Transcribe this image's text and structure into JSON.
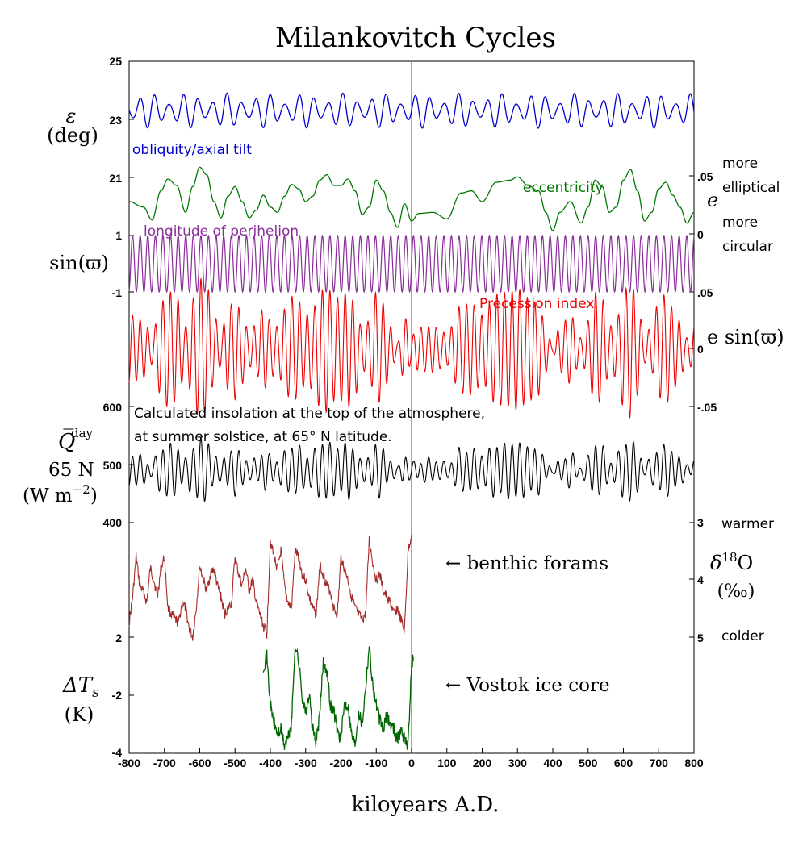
{
  "chart_data": {
    "type": "line",
    "title": "Milankovitch Cycles",
    "xlabel": "kiloyears A.D.",
    "xlim": [
      -800,
      800
    ],
    "x_ticks": [
      -800,
      -700,
      -600,
      -500,
      -400,
      -300,
      -200,
      -100,
      0,
      100,
      200,
      300,
      400,
      500,
      600,
      700,
      800
    ],
    "colors": {
      "obliquity": "#0000cc",
      "eccentricity": "#007700",
      "perihelion": "#8a2c9a",
      "precession": "#ee0000",
      "insolation": "#000000",
      "forams": "#a52a2a",
      "vostok": "#006400",
      "zero_line": "#888888"
    },
    "left_tick_labels": {
      "obliquity": [
        "25",
        "23",
        "21"
      ],
      "perihelion": [
        "1",
        "-1"
      ],
      "insolation": [
        "600",
        "500",
        "400"
      ],
      "temperature": [
        "2",
        "-2",
        "-4"
      ]
    },
    "right_tick_labels": {
      "eccentricity": [
        ".05",
        "0"
      ],
      "precession": [
        ".05",
        "0",
        "-.05"
      ],
      "d18O": [
        "3",
        "4",
        "5"
      ]
    },
    "panels": {
      "obliquity": {
        "ylabel_symbol": "ε",
        "ylabel_unit": "(deg)",
        "annotation": "obliquity/axial tilt",
        "ylim": [
          21,
          25
        ],
        "series": {
          "type": "sine",
          "center": 23.3,
          "base_amplitude": 0.55,
          "period_kyr": 41,
          "modulation_period_kyr": 110
        }
      },
      "eccentricity": {
        "ylabel_symbol": "e",
        "annotation": "eccentricity",
        "right_annotation_top": "more\nelliptical",
        "right_annotation_bottom": "more\ncircular",
        "ylim": [
          0,
          0.06
        ],
        "values_x": [
          -800,
          -760,
          -735,
          -710,
          -690,
          -665,
          -640,
          -620,
          -600,
          -580,
          -560,
          -540,
          -520,
          -500,
          -480,
          -460,
          -440,
          -420,
          -400,
          -380,
          -360,
          -340,
          -320,
          -300,
          -280,
          -260,
          -240,
          -220,
          -200,
          -180,
          -160,
          -140,
          -120,
          -100,
          -80,
          -60,
          -40,
          -20,
          0,
          20,
          60,
          100,
          140,
          170,
          200,
          240,
          280,
          300,
          330,
          360,
          380,
          400,
          420,
          450,
          480,
          500,
          520,
          540,
          560,
          580,
          600,
          620,
          640,
          660,
          680,
          700,
          720,
          740,
          760,
          780,
          800
        ],
        "values_y": [
          0.03,
          0.025,
          0.013,
          0.04,
          0.051,
          0.045,
          0.02,
          0.044,
          0.062,
          0.055,
          0.03,
          0.015,
          0.035,
          0.044,
          0.03,
          0.015,
          0.022,
          0.036,
          0.025,
          0.02,
          0.035,
          0.046,
          0.042,
          0.03,
          0.035,
          0.05,
          0.055,
          0.045,
          0.045,
          0.051,
          0.04,
          0.018,
          0.025,
          0.05,
          0.04,
          0.02,
          0.006,
          0.028,
          0.012,
          0.019,
          0.02,
          0.014,
          0.038,
          0.04,
          0.03,
          0.048,
          0.05,
          0.053,
          0.045,
          0.04,
          0.02,
          0.003,
          0.02,
          0.03,
          0.01,
          0.025,
          0.05,
          0.044,
          0.02,
          0.025,
          0.05,
          0.06,
          0.04,
          0.012,
          0.02,
          0.042,
          0.048,
          0.036,
          0.025,
          0.01,
          0.02
        ]
      },
      "perihelion": {
        "ylabel_symbol": "sin(ϖ)",
        "annotation": "longitude of perihelion",
        "ylim": [
          -1,
          1
        ],
        "series": {
          "type": "sine",
          "amplitude": 1,
          "period_kyr": 21.5
        }
      },
      "precession": {
        "ylabel_symbol": "e sin(ϖ)",
        "annotation": "Precession index",
        "ylim": [
          -0.05,
          0.05
        ],
        "series": {
          "type": "modulated",
          "period_kyr": 21.5,
          "modulator": "eccentricity"
        }
      },
      "insolation": {
        "ylabel_symbol": "Q̅",
        "ylabel_superscript": "day",
        "ylabel_line2": "65 N",
        "ylabel_unit": "(W m",
        "ylabel_unit_sup": "−2",
        "ylabel_unit_close": ")",
        "annotation_line1": "Calculated insolation at the top of the atmosphere,",
        "annotation_line2": "at summer solstice, at 65° N latitude.",
        "ylim": [
          400,
          600
        ],
        "series": {
          "type": "combined",
          "center": 490,
          "obliquity_weight": 10,
          "precession_weight": 900
        }
      },
      "forams": {
        "ylabel_symbol": "δ",
        "ylabel_sup": "18",
        "ylabel_tail": "O",
        "ylabel_unit": "(‰)",
        "right_annotation_top": "warmer",
        "right_annotation_bottom": "colder",
        "annotation": "← benthic forams",
        "ylim": [
          5,
          3
        ],
        "values_x": [
          -800,
          -790,
          -780,
          -770,
          -760,
          -750,
          -740,
          -730,
          -720,
          -710,
          -700,
          -690,
          -680,
          -670,
          -660,
          -650,
          -640,
          -630,
          -620,
          -610,
          -600,
          -590,
          -580,
          -570,
          -560,
          -550,
          -540,
          -530,
          -520,
          -510,
          -500,
          -490,
          -480,
          -470,
          -460,
          -450,
          -440,
          -430,
          -420,
          -410,
          -400,
          -390,
          -380,
          -370,
          -360,
          -350,
          -340,
          -330,
          -320,
          -310,
          -300,
          -290,
          -280,
          -270,
          -260,
          -250,
          -240,
          -230,
          -220,
          -210,
          -200,
          -190,
          -180,
          -170,
          -160,
          -150,
          -140,
          -130,
          -120,
          -110,
          -100,
          -90,
          -80,
          -70,
          -60,
          -50,
          -40,
          -30,
          -20,
          -10,
          0
        ],
        "values_y": [
          4.75,
          4.3,
          3.6,
          4.1,
          4.2,
          4.4,
          3.8,
          4.0,
          4.3,
          3.8,
          3.6,
          4.5,
          4.6,
          4.7,
          4.75,
          4.4,
          4.5,
          4.85,
          5.0,
          4.5,
          3.75,
          4.0,
          4.2,
          3.9,
          3.8,
          4.1,
          4.3,
          4.6,
          4.5,
          4.4,
          3.6,
          3.9,
          4.1,
          3.8,
          4.2,
          4.0,
          4.4,
          4.6,
          4.8,
          4.95,
          3.3,
          3.6,
          3.8,
          3.5,
          4.1,
          4.4,
          4.5,
          3.5,
          3.6,
          3.9,
          4.0,
          4.3,
          4.5,
          4.6,
          3.75,
          3.9,
          4.1,
          4.2,
          4.5,
          4.6,
          3.6,
          3.8,
          4.0,
          4.3,
          4.5,
          4.6,
          4.7,
          4.6,
          3.3,
          3.7,
          4.0,
          3.9,
          4.2,
          4.3,
          4.4,
          4.6,
          4.5,
          4.7,
          4.9,
          3.5,
          3.2
        ]
      },
      "vostok": {
        "ylabel_symbol": "ΔT",
        "ylabel_sub": "s",
        "ylabel_unit": "(K)",
        "annotation": "← Vostok ice core",
        "ylim": [
          -4,
          2
        ],
        "values_x": [
          -420,
          -410,
          -400,
          -390,
          -380,
          -370,
          -360,
          -350,
          -340,
          -330,
          -320,
          -310,
          -300,
          -290,
          -280,
          -270,
          -260,
          -250,
          -240,
          -230,
          -220,
          -210,
          -200,
          -190,
          -180,
          -170,
          -160,
          -150,
          -140,
          -130,
          -120,
          -110,
          -100,
          -90,
          -80,
          -70,
          -60,
          -50,
          -40,
          -30,
          -20,
          -10,
          0,
          5
        ],
        "values_y": [
          0.5,
          1.0,
          -1.5,
          -2.4,
          -3.0,
          -2.8,
          -3.6,
          -3.2,
          -2.5,
          1.6,
          0.8,
          -1.0,
          -2.0,
          -1.0,
          -2.8,
          -3.4,
          -2.0,
          0.8,
          0.3,
          -1.5,
          -1.8,
          -2.8,
          -3.3,
          -1.4,
          -1.5,
          -3.0,
          -3.5,
          -1.8,
          -2.5,
          -0.5,
          1.6,
          -0.5,
          -1.5,
          -2.3,
          -2.8,
          -2.0,
          -2.5,
          -2.7,
          -3.3,
          -2.8,
          -3.2,
          -3.6,
          0.5,
          1.0
        ]
      }
    }
  }
}
